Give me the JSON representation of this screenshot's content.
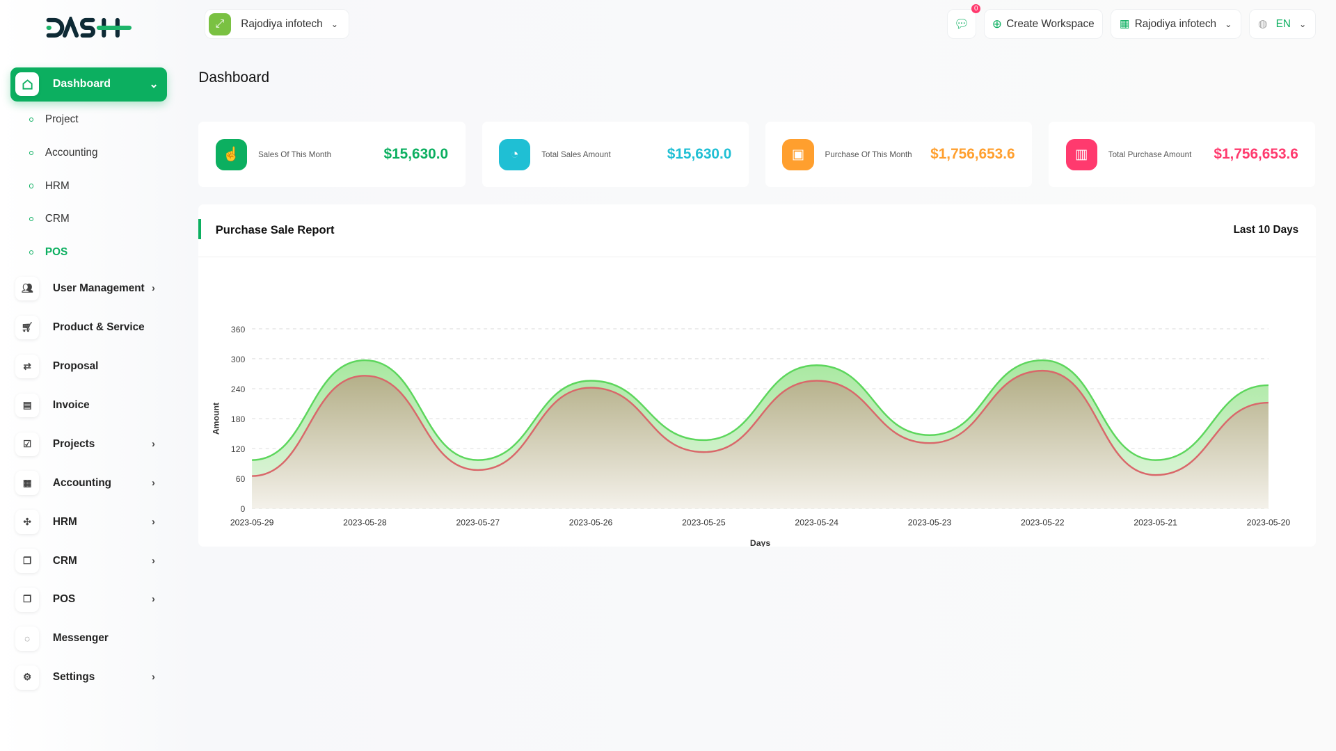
{
  "brand": {
    "logo_text": "DASH"
  },
  "header": {
    "workspace": "Rajodiya infotech",
    "notifications": "0",
    "create_workspace": "Create Workspace",
    "user": "Rajodiya infotech",
    "language": "EN"
  },
  "page_title": "Dashboard",
  "sidebar": {
    "dashboard": "Dashboard",
    "sub_items": [
      "Project",
      "Accounting",
      "HRM",
      "CRM",
      "POS"
    ],
    "items": [
      {
        "label": "User Management",
        "icon": "users-icon",
        "chevron": true
      },
      {
        "label": "Product & Service",
        "icon": "cart-icon",
        "chevron": false
      },
      {
        "label": "Proposal",
        "icon": "proposal-icon",
        "chevron": false
      },
      {
        "label": "Invoice",
        "icon": "invoice-icon",
        "chevron": false
      },
      {
        "label": "Projects",
        "icon": "checkbox-icon",
        "chevron": true
      },
      {
        "label": "Accounting",
        "icon": "grid-icon",
        "chevron": true
      },
      {
        "label": "HRM",
        "icon": "hrm-icon",
        "chevron": true
      },
      {
        "label": "CRM",
        "icon": "crm-icon",
        "chevron": true
      },
      {
        "label": "POS",
        "icon": "pos-icon",
        "chevron": true
      },
      {
        "label": "Messenger",
        "icon": "chat-icon",
        "chevron": false
      },
      {
        "label": "Settings",
        "icon": "gear-icon",
        "chevron": true
      }
    ]
  },
  "stats": [
    {
      "title": "Sales Of This Month",
      "value": "$15,630.0",
      "color": "#0caf60",
      "icon": "hand-pointer-icon"
    },
    {
      "title": "Total Sales Amount",
      "value": "$15,630.0",
      "color": "#1fbfd4",
      "icon": "pie-chart-icon"
    },
    {
      "title": "Purchase Of This Month",
      "value": "$1,756,653.6",
      "color": "#ff9f2e",
      "icon": "clipboard-icon"
    },
    {
      "title": "Total Purchase Amount",
      "value": "$1,756,653.6",
      "color": "#ff3a6e",
      "icon": "bar-chart-icon"
    }
  ],
  "report": {
    "title": "Purchase Sale Report",
    "range": "Last 10 Days"
  },
  "chart_data": {
    "type": "area",
    "xlabel": "Days",
    "ylabel": "Amount",
    "ylim": [
      0,
      360
    ],
    "yticks": [
      0,
      60,
      120,
      180,
      240,
      300,
      360
    ],
    "grid": true,
    "categories": [
      "2023-05-29",
      "2023-05-28",
      "2023-05-27",
      "2023-05-26",
      "2023-05-25",
      "2023-05-24",
      "2023-05-23",
      "2023-05-22",
      "2023-05-21",
      "2023-05-20"
    ],
    "series": [
      {
        "color": "#5cd65c",
        "values": [
          97,
          297,
          97,
          256,
          137,
          287,
          147,
          297,
          97,
          247
        ]
      },
      {
        "color": "#d9676a",
        "values": [
          65,
          266,
          77,
          242,
          113,
          256,
          131,
          276,
          67,
          212
        ]
      }
    ]
  }
}
